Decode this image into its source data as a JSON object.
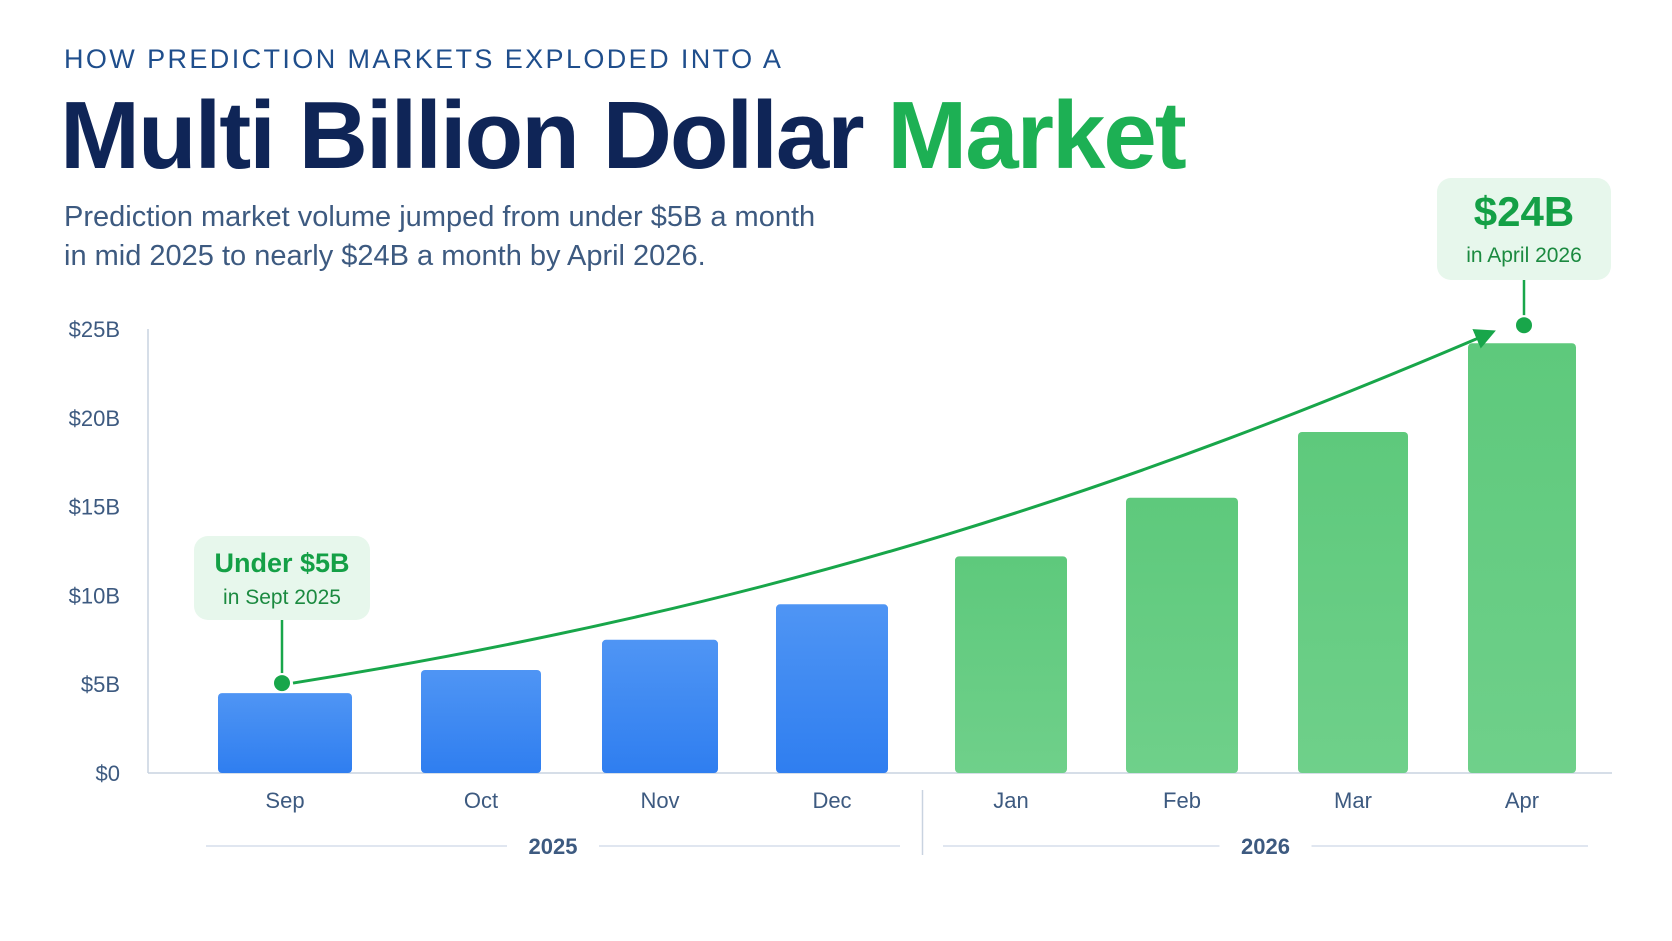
{
  "header": {
    "eyebrow": "HOW PREDICTION MARKETS EXPLODED INTO A",
    "title_main": "Multi Billion Dollar ",
    "title_accent": "Market",
    "subtitle_line1": "Prediction market volume jumped from under $5B a month",
    "subtitle_line2": "in mid 2025 to nearly $24B a month by April 2026."
  },
  "colors": {
    "title": "#0f2557",
    "accent": "#1db054",
    "bar_2025": "#2f7ef0",
    "bar_2026": "#5ec97c",
    "trend_line": "#18a64a",
    "annotation_bg": "#e7f7ec"
  },
  "chart_data": {
    "type": "bar",
    "categories": [
      "Sep",
      "Oct",
      "Nov",
      "Dec",
      "Jan",
      "Feb",
      "Mar",
      "Apr"
    ],
    "years": [
      "2025",
      "2025",
      "2025",
      "2025",
      "2026",
      "2026",
      "2026",
      "2026"
    ],
    "values": [
      4.5,
      5.8,
      7.5,
      9.5,
      12.2,
      15.5,
      19.2,
      24.2
    ],
    "unit": "$B",
    "ylim": [
      0,
      25
    ],
    "y_ticks": [
      0,
      5,
      10,
      15,
      20,
      25
    ],
    "y_tick_labels": [
      "$0",
      "$5B",
      "$10B",
      "$15B",
      "$20B",
      "$25B"
    ],
    "year_groups": [
      {
        "label": "2025",
        "categories": [
          "Sep",
          "Oct",
          "Nov",
          "Dec"
        ]
      },
      {
        "label": "2026",
        "categories": [
          "Jan",
          "Feb",
          "Mar",
          "Apr"
        ]
      }
    ],
    "grid": false,
    "trend_arrow": {
      "from": "Sep",
      "to": "Apr"
    },
    "annotations": [
      {
        "category": "Sep",
        "title": "Under $5B",
        "subtitle": "in Sept 2025"
      },
      {
        "category": "Apr",
        "title": "$24B",
        "subtitle": "in April 2026"
      }
    ]
  }
}
